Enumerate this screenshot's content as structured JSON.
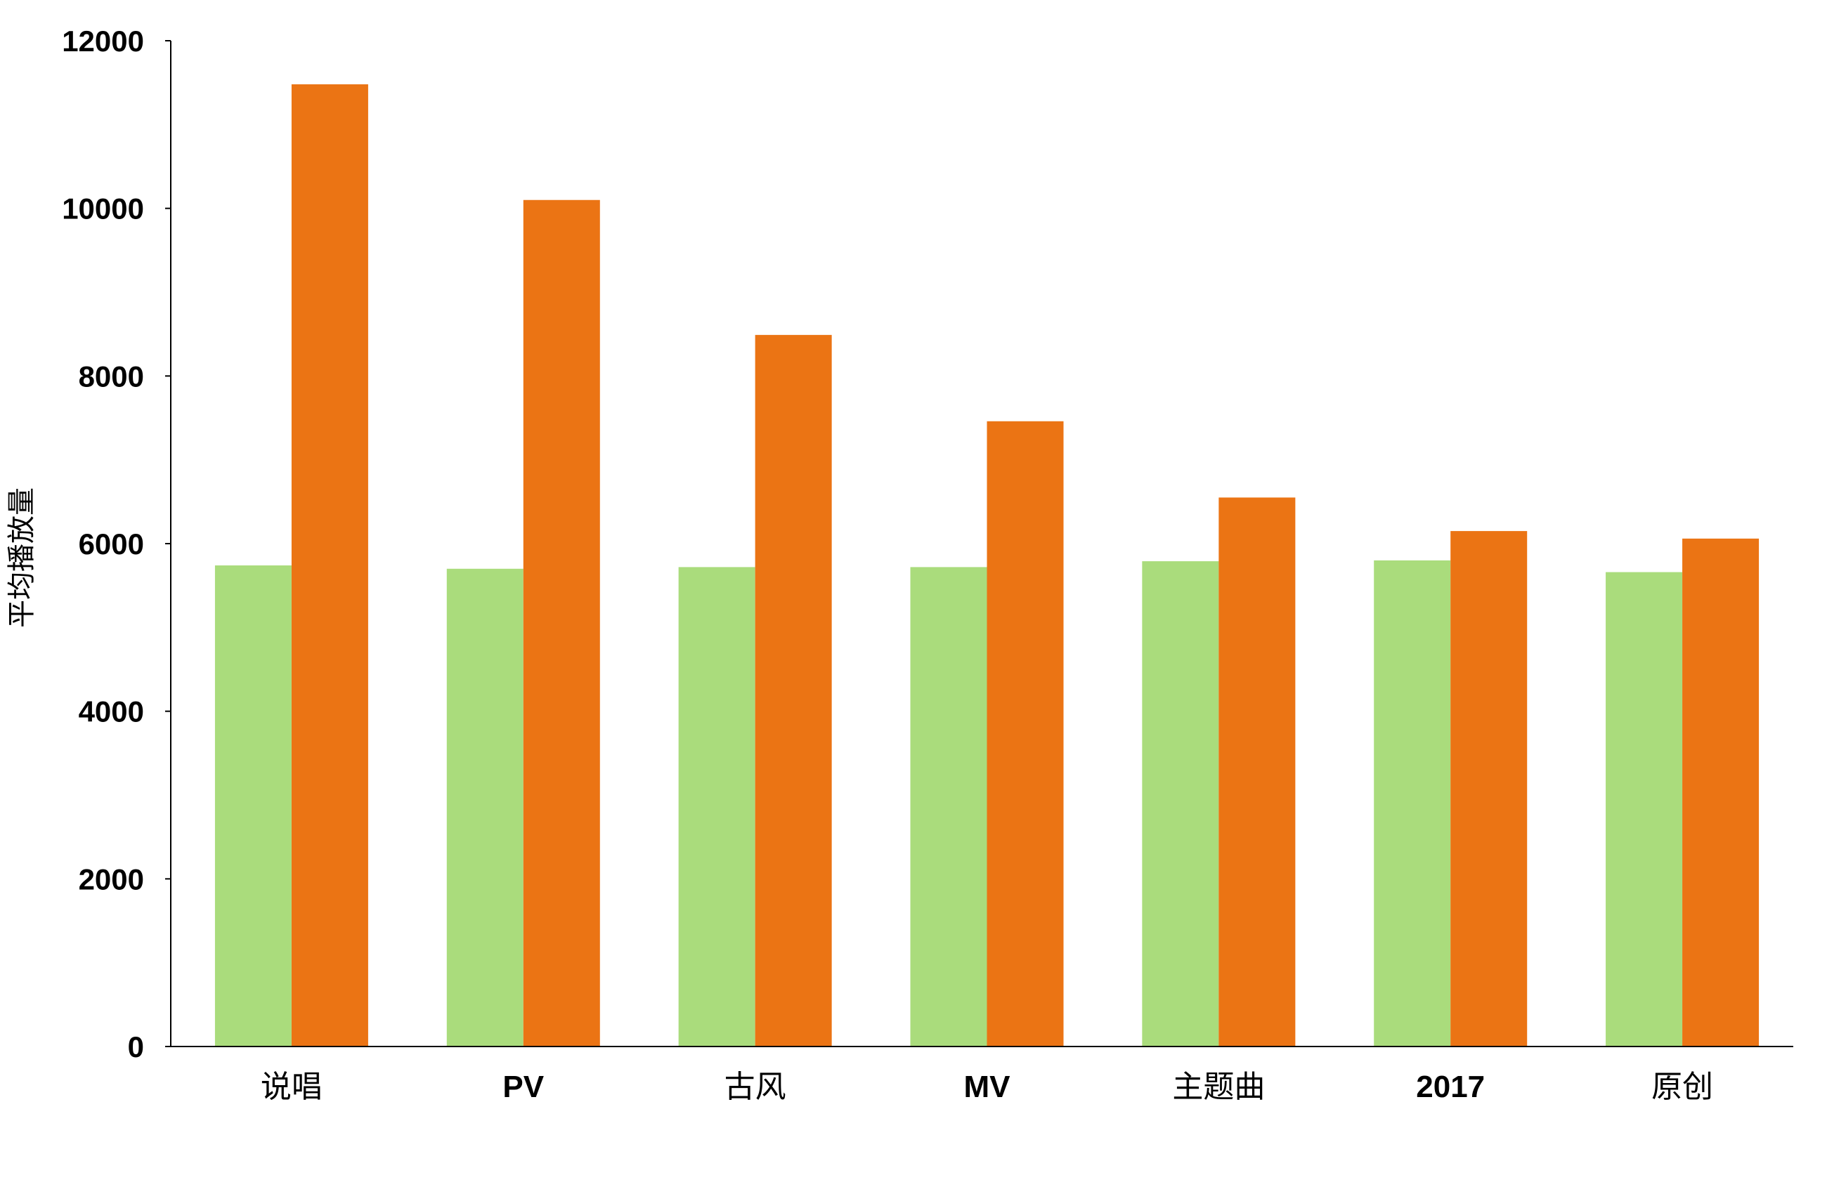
{
  "chart_data": {
    "type": "bar",
    "title": "",
    "xlabel": "",
    "ylabel": "平均播放量",
    "ylim": [
      0,
      12000
    ],
    "yticks": [
      0,
      2000,
      4000,
      6000,
      8000,
      10000,
      12000
    ],
    "grid": false,
    "legend": "none",
    "categories": [
      "说唱",
      "PV",
      "古风",
      "MV",
      "主题曲",
      "2017",
      "原创"
    ],
    "series": [
      {
        "color": "#aadc7c",
        "values": [
          5740,
          5700,
          5720,
          5720,
          5790,
          5800,
          5660
        ]
      },
      {
        "color": "#eb7414",
        "values": [
          11480,
          10100,
          8490,
          7460,
          6550,
          6150,
          6060
        ]
      }
    ]
  }
}
